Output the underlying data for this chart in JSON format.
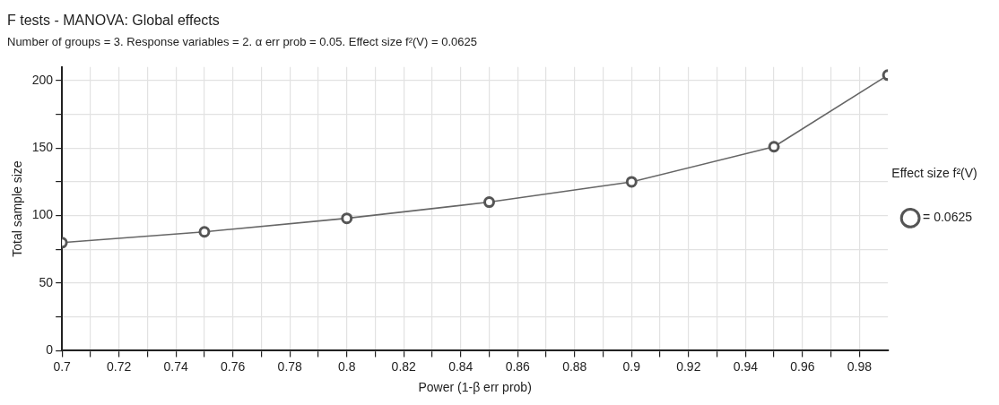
{
  "chart_data": {
    "type": "line",
    "title": "F tests - MANOVA: Global effects",
    "subtitle": "Number of groups = 3. Response variables = 2. α err prob = 0.05. Effect size f²(V) = 0.0625",
    "xlabel": "Power (1-β err prob)",
    "ylabel": "Total sample size",
    "legend_title": "Effect size f²(V)",
    "legend": "right",
    "grid": true,
    "marker": "circle",
    "line_style": "solid",
    "x": [
      0.7,
      0.75,
      0.8,
      0.85,
      0.9,
      0.95,
      0.99
    ],
    "series": [
      {
        "name": "= 0.0625",
        "color": "#666666",
        "values": [
          80,
          88,
          98,
          110,
          125,
          151,
          204
        ]
      }
    ],
    "xlim": [
      0.7,
      0.99
    ],
    "xticks": [
      0.7,
      {
        "value": 0.71,
        "label": null
      },
      0.72,
      {
        "value": 0.73,
        "label": null
      },
      0.74,
      {
        "value": 0.75,
        "label": null
      },
      0.76,
      {
        "value": 0.77,
        "label": null
      },
      0.78,
      {
        "value": 0.79,
        "label": null
      },
      0.8,
      {
        "value": 0.81,
        "label": null
      },
      0.82,
      {
        "value": 0.83,
        "label": null
      },
      0.84,
      {
        "value": 0.85,
        "label": null
      },
      0.86,
      {
        "value": 0.87,
        "label": null
      },
      0.88,
      {
        "value": 0.89,
        "label": null
      },
      0.9,
      {
        "value": 0.91,
        "label": null
      },
      0.92,
      {
        "value": 0.93,
        "label": null
      },
      0.94,
      {
        "value": 0.95,
        "label": null
      },
      0.96,
      {
        "value": 0.97,
        "label": null
      },
      0.98
    ],
    "ylim": [
      0,
      210
    ],
    "yticks": [
      0,
      {
        "value": 25,
        "label": null
      },
      50,
      {
        "value": 75,
        "label": null
      },
      100,
      {
        "value": 125,
        "label": null
      },
      150,
      {
        "value": 175,
        "label": null
      },
      200
    ]
  }
}
